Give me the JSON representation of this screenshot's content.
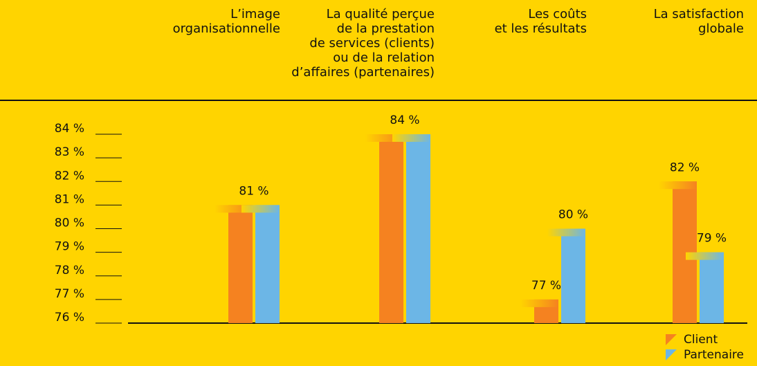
{
  "chart_data": {
    "type": "bar",
    "categories": [
      "L’image\norganisationnelle",
      "La qualité perçue\nde la prestation\nde services (clients)\nou de la relation\nd’affaires (partenaires)",
      "Les coûts\net les résultats",
      "La satisfaction\nglobale"
    ],
    "series": [
      {
        "name": "Client",
        "color": "#f58220",
        "values": [
          81,
          84,
          77,
          82
        ],
        "value_labels": [
          "81 %",
          "84 %",
          "77 %",
          "82 %"
        ]
      },
      {
        "name": "Partenaire",
        "color": "#6cb6e6",
        "values": [
          81,
          84,
          80,
          79
        ],
        "value_labels": [
          null,
          null,
          "80 %",
          "79 %"
        ]
      }
    ],
    "ylim": [
      76,
      84
    ],
    "yticks": [
      {
        "value": 76,
        "label": "76 %"
      },
      {
        "value": 77,
        "label": "77 %"
      },
      {
        "value": 78,
        "label": "78 %"
      },
      {
        "value": 79,
        "label": "79 %"
      },
      {
        "value": 80,
        "label": "80 %"
      },
      {
        "value": 81,
        "label": "81 %"
      },
      {
        "value": 82,
        "label": "82 %"
      },
      {
        "value": 83,
        "label": "83 %"
      },
      {
        "value": 84,
        "label": "84 %"
      }
    ],
    "background": "#ffd400"
  }
}
